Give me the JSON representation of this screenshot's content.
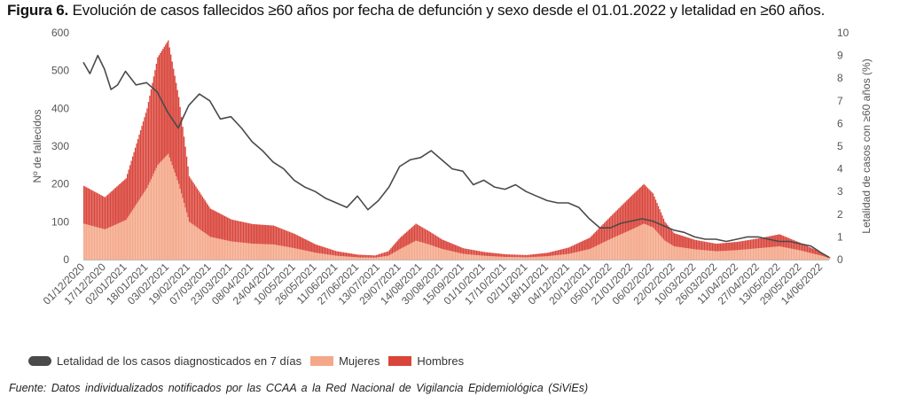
{
  "figure": {
    "label": "Figura 6.",
    "title": " Evolución de casos fallecidos ≥60 años por fecha de defunción y sexo desde el 01.01.2022 y letalidad en ≥60 años."
  },
  "source_note": "Fuente: Datos individualizados notificados por las CCAA a la Red Nacional de Vigilancia Epidemiológica (SiViEs)",
  "colors": {
    "mujeres": "#f4a88a",
    "hombres": "#d9453b",
    "letalidad": "#4a4a4a"
  },
  "chart_data": {
    "type": "bar",
    "stacked": true,
    "dual_axis": true,
    "ylabel": "Nº de fallecidos",
    "ylabel_right": "Letalidad de casos con ≥60 años (%)",
    "ylim": [
      0,
      600
    ],
    "ylim_right": [
      0,
      10
    ],
    "yticks": [
      "0",
      "100",
      "200",
      "300",
      "400",
      "500",
      "600"
    ],
    "yticks_right": [
      "0",
      "1",
      "2",
      "3",
      "4",
      "5",
      "6",
      "7",
      "8",
      "9",
      "10"
    ],
    "x_start": "01/12/2020",
    "x_end": "20/06/2022",
    "x_tick_labels": [
      "01/12/2020",
      "17/12/2020",
      "02/01/2021",
      "18/01/2021",
      "03/02/2021",
      "19/02/2021",
      "07/03/2021",
      "23/03/2021",
      "08/04/2021",
      "24/04/2021",
      "10/05/2021",
      "26/05/2021",
      "11/06/2021",
      "27/06/2021",
      "13/07/2021",
      "29/07/2021",
      "14/08/2021",
      "30/08/2021",
      "15/09/2021",
      "01/10/2021",
      "17/10/2021",
      "02/11/2021",
      "18/11/2021",
      "04/12/2021",
      "20/12/2021",
      "05/01/2022",
      "21/01/2022",
      "06/02/2022",
      "22/02/2022",
      "10/03/2022",
      "26/03/2022",
      "11/04/2022",
      "27/04/2022",
      "13/05/2022",
      "29/05/2022",
      "14/06/2022"
    ],
    "legend_position": "bottom-left",
    "grid": false,
    "series": [
      {
        "name": "Hombres",
        "axis": "left",
        "kind": "bar",
        "points": [
          [
            "01/12/2020",
            100
          ],
          [
            "17/12/2020",
            85
          ],
          [
            "02/01/2021",
            110
          ],
          [
            "18/01/2021",
            210
          ],
          [
            "26/01/2021",
            285
          ],
          [
            "03/02/2021",
            300
          ],
          [
            "11/02/2021",
            230
          ],
          [
            "19/02/2021",
            120
          ],
          [
            "07/03/2021",
            75
          ],
          [
            "23/03/2021",
            58
          ],
          [
            "08/04/2021",
            52
          ],
          [
            "24/04/2021",
            50
          ],
          [
            "10/05/2021",
            38
          ],
          [
            "26/05/2021",
            22
          ],
          [
            "11/06/2021",
            12
          ],
          [
            "27/06/2021",
            7
          ],
          [
            "10/07/2021",
            6
          ],
          [
            "20/07/2021",
            12
          ],
          [
            "29/07/2021",
            30
          ],
          [
            "10/08/2021",
            45
          ],
          [
            "20/08/2021",
            35
          ],
          [
            "30/08/2021",
            25
          ],
          [
            "15/09/2021",
            15
          ],
          [
            "01/10/2021",
            10
          ],
          [
            "17/10/2021",
            7
          ],
          [
            "02/11/2021",
            6
          ],
          [
            "18/11/2021",
            9
          ],
          [
            "04/12/2021",
            17
          ],
          [
            "20/12/2021",
            30
          ],
          [
            "05/01/2022",
            60
          ],
          [
            "21/01/2022",
            90
          ],
          [
            "30/01/2022",
            105
          ],
          [
            "06/02/2022",
            90
          ],
          [
            "15/02/2022",
            50
          ],
          [
            "22/02/2022",
            35
          ],
          [
            "10/03/2022",
            25
          ],
          [
            "26/03/2022",
            20
          ],
          [
            "11/04/2022",
            22
          ],
          [
            "27/04/2022",
            26
          ],
          [
            "13/05/2022",
            32
          ],
          [
            "29/05/2022",
            20
          ],
          [
            "14/06/2022",
            8
          ],
          [
            "20/06/2022",
            3
          ]
        ]
      },
      {
        "name": "Mujeres",
        "axis": "left",
        "kind": "bar",
        "points": [
          [
            "01/12/2020",
            95
          ],
          [
            "17/12/2020",
            80
          ],
          [
            "02/01/2021",
            105
          ],
          [
            "18/01/2021",
            190
          ],
          [
            "26/01/2021",
            250
          ],
          [
            "03/02/2021",
            280
          ],
          [
            "11/02/2021",
            200
          ],
          [
            "19/02/2021",
            100
          ],
          [
            "07/03/2021",
            60
          ],
          [
            "23/03/2021",
            48
          ],
          [
            "08/04/2021",
            42
          ],
          [
            "24/04/2021",
            40
          ],
          [
            "10/05/2021",
            30
          ],
          [
            "26/05/2021",
            18
          ],
          [
            "11/06/2021",
            10
          ],
          [
            "27/06/2021",
            6
          ],
          [
            "10/07/2021",
            5
          ],
          [
            "20/07/2021",
            10
          ],
          [
            "29/07/2021",
            28
          ],
          [
            "10/08/2021",
            50
          ],
          [
            "20/08/2021",
            40
          ],
          [
            "30/08/2021",
            28
          ],
          [
            "15/09/2021",
            15
          ],
          [
            "01/10/2021",
            10
          ],
          [
            "17/10/2021",
            7
          ],
          [
            "02/11/2021",
            6
          ],
          [
            "18/11/2021",
            9
          ],
          [
            "04/12/2021",
            15
          ],
          [
            "20/12/2021",
            28
          ],
          [
            "05/01/2022",
            55
          ],
          [
            "21/01/2022",
            80
          ],
          [
            "30/01/2022",
            95
          ],
          [
            "06/02/2022",
            85
          ],
          [
            "15/02/2022",
            50
          ],
          [
            "22/02/2022",
            35
          ],
          [
            "10/03/2022",
            27
          ],
          [
            "26/03/2022",
            22
          ],
          [
            "11/04/2022",
            25
          ],
          [
            "27/04/2022",
            30
          ],
          [
            "13/05/2022",
            35
          ],
          [
            "29/05/2022",
            24
          ],
          [
            "14/06/2022",
            10
          ],
          [
            "20/06/2022",
            4
          ]
        ]
      },
      {
        "name": "Letalidad de los casos diagnosticados en 7 días",
        "axis": "right",
        "kind": "line",
        "points": [
          [
            "01/12/2020",
            8.7
          ],
          [
            "06/12/2020",
            8.2
          ],
          [
            "12/12/2020",
            9.0
          ],
          [
            "17/12/2020",
            8.4
          ],
          [
            "22/12/2020",
            7.5
          ],
          [
            "27/12/2020",
            7.7
          ],
          [
            "02/01/2021",
            8.3
          ],
          [
            "10/01/2021",
            7.7
          ],
          [
            "18/01/2021",
            7.8
          ],
          [
            "26/01/2021",
            7.4
          ],
          [
            "03/02/2021",
            6.5
          ],
          [
            "11/02/2021",
            5.8
          ],
          [
            "19/02/2021",
            6.8
          ],
          [
            "27/02/2021",
            7.3
          ],
          [
            "07/03/2021",
            7.0
          ],
          [
            "15/03/2021",
            6.2
          ],
          [
            "23/03/2021",
            6.3
          ],
          [
            "31/03/2021",
            5.8
          ],
          [
            "08/04/2021",
            5.2
          ],
          [
            "16/04/2021",
            4.8
          ],
          [
            "24/04/2021",
            4.3
          ],
          [
            "02/05/2021",
            4.0
          ],
          [
            "10/05/2021",
            3.5
          ],
          [
            "18/05/2021",
            3.2
          ],
          [
            "26/05/2021",
            3.0
          ],
          [
            "03/06/2021",
            2.7
          ],
          [
            "11/06/2021",
            2.5
          ],
          [
            "19/06/2021",
            2.3
          ],
          [
            "27/06/2021",
            2.8
          ],
          [
            "05/07/2021",
            2.2
          ],
          [
            "13/07/2021",
            2.6
          ],
          [
            "21/07/2021",
            3.2
          ],
          [
            "29/07/2021",
            4.1
          ],
          [
            "06/08/2021",
            4.4
          ],
          [
            "14/08/2021",
            4.5
          ],
          [
            "22/08/2021",
            4.8
          ],
          [
            "30/08/2021",
            4.4
          ],
          [
            "07/09/2021",
            4.0
          ],
          [
            "15/09/2021",
            3.9
          ],
          [
            "23/09/2021",
            3.3
          ],
          [
            "01/10/2021",
            3.5
          ],
          [
            "09/10/2021",
            3.2
          ],
          [
            "17/10/2021",
            3.1
          ],
          [
            "25/10/2021",
            3.3
          ],
          [
            "02/11/2021",
            3.0
          ],
          [
            "10/11/2021",
            2.8
          ],
          [
            "18/11/2021",
            2.6
          ],
          [
            "26/11/2021",
            2.5
          ],
          [
            "04/12/2021",
            2.5
          ],
          [
            "12/12/2021",
            2.3
          ],
          [
            "20/12/2021",
            1.8
          ],
          [
            "28/12/2021",
            1.4
          ],
          [
            "05/01/2022",
            1.4
          ],
          [
            "13/01/2022",
            1.6
          ],
          [
            "21/01/2022",
            1.7
          ],
          [
            "29/01/2022",
            1.8
          ],
          [
            "06/02/2022",
            1.7
          ],
          [
            "14/02/2022",
            1.5
          ],
          [
            "22/02/2022",
            1.3
          ],
          [
            "02/03/2022",
            1.2
          ],
          [
            "10/03/2022",
            1.0
          ],
          [
            "18/03/2022",
            0.9
          ],
          [
            "26/03/2022",
            0.9
          ],
          [
            "03/04/2022",
            0.8
          ],
          [
            "11/04/2022",
            0.9
          ],
          [
            "19/04/2022",
            1.0
          ],
          [
            "27/04/2022",
            1.0
          ],
          [
            "05/05/2022",
            0.9
          ],
          [
            "13/05/2022",
            0.8
          ],
          [
            "21/05/2022",
            0.8
          ],
          [
            "29/05/2022",
            0.7
          ],
          [
            "06/06/2022",
            0.6
          ],
          [
            "14/06/2022",
            0.3
          ],
          [
            "20/06/2022",
            0.1
          ]
        ]
      }
    ]
  }
}
